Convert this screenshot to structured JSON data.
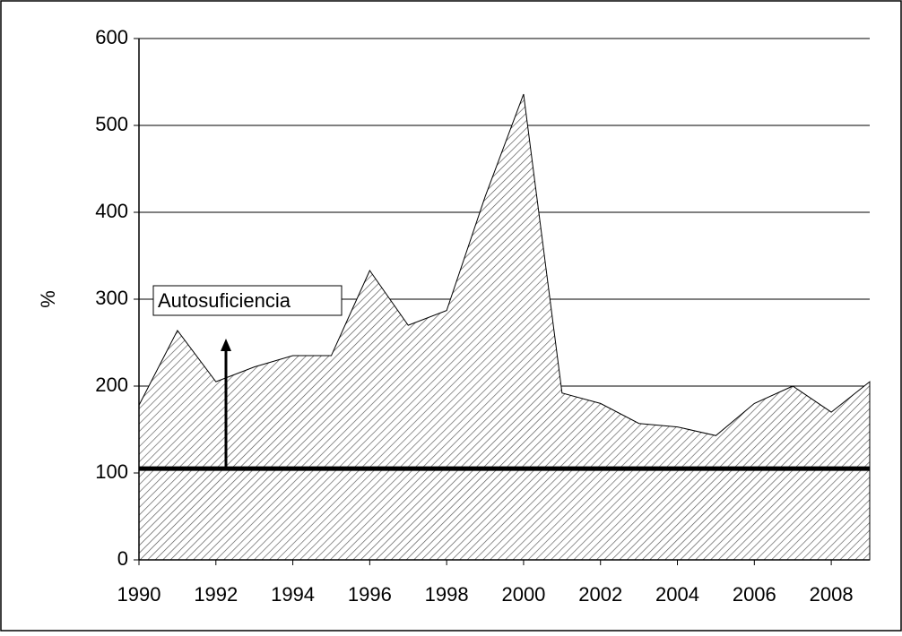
{
  "chart_data": {
    "type": "area",
    "ylabel": "%",
    "x": [
      1990,
      1991,
      1992,
      1993,
      1994,
      1995,
      1996,
      1997,
      1998,
      1999,
      2000,
      2001,
      2002,
      2003,
      2004,
      2005,
      2006,
      2007,
      2008,
      2009
    ],
    "values": [
      178,
      264,
      205,
      222,
      235,
      235,
      333,
      270,
      287,
      418,
      536,
      192,
      180,
      157,
      153,
      143,
      180,
      200,
      170,
      205
    ],
    "xlim": [
      1990,
      2009
    ],
    "xticks": [
      1990,
      1992,
      1994,
      1996,
      1998,
      2000,
      2002,
      2004,
      2006,
      2008
    ],
    "ylim": [
      0,
      600
    ],
    "yticks": [
      0,
      100,
      200,
      300,
      400,
      500,
      600
    ],
    "grid": true,
    "reference_line": 105,
    "annotation": "Autosuficiencia",
    "color": "#000000"
  }
}
